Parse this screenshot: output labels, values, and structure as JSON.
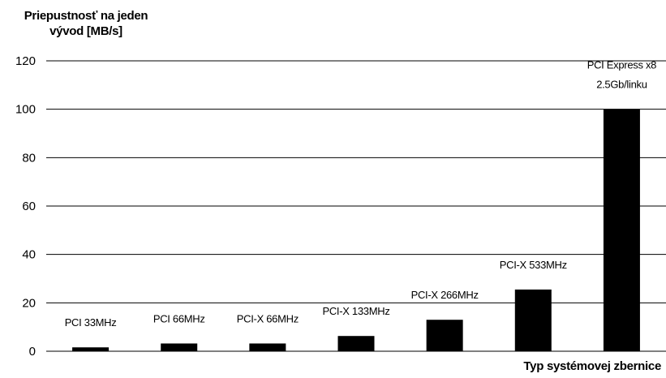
{
  "chart_data": {
    "type": "bar",
    "title": "",
    "ylabel_line1": "Priepustnosť na jeden",
    "ylabel_line2": "vývod [MB/s]",
    "xlabel": "Typ systémovej zbernice",
    "ylim": [
      0,
      120
    ],
    "yticks": [
      0,
      20,
      40,
      60,
      80,
      100,
      120
    ],
    "grid": true,
    "categories": [
      [
        "PCI 33MHz"
      ],
      [
        "PCI 66MHz"
      ],
      [
        "PCI-X 66MHz"
      ],
      [
        "PCI-X 133MHz"
      ],
      [
        "PCI-X 266MHz"
      ],
      [
        "PCI-X 533MHz"
      ],
      [
        "PCI Express x8",
        "2.5Gb/linku"
      ]
    ],
    "values": [
      1.6,
      3.2,
      3.2,
      6.3,
      13,
      25.5,
      100
    ],
    "bar_color": "#000000"
  }
}
